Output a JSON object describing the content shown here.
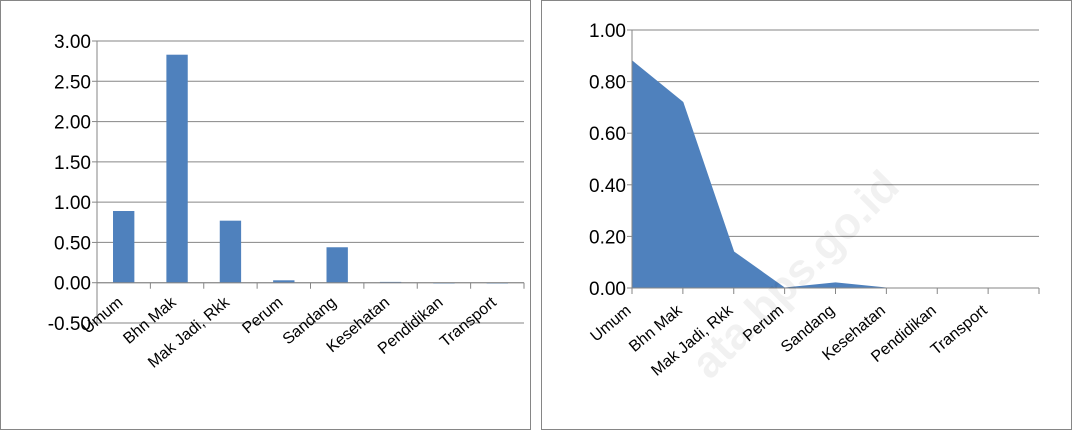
{
  "chart_data": [
    {
      "type": "bar",
      "categories": [
        "Umum",
        "Bhn Mak",
        "Mak Jadi, Rkk",
        "Perum",
        "Sandang",
        "Kesehatan",
        "Pendidikan",
        "Transport"
      ],
      "values": [
        0.89,
        2.83,
        0.77,
        0.03,
        0.44,
        0.01,
        0.0,
        0.0
      ],
      "ylim": [
        -0.5,
        3.0
      ],
      "yticks": [
        "-0.50",
        "0.00",
        "0.50",
        "1.00",
        "1.50",
        "2.00",
        "2.50",
        "3.00"
      ],
      "grid": true,
      "color": "#4f81bd"
    },
    {
      "type": "area",
      "categories": [
        "Umum",
        "Bhn Mak",
        "Mak Jadi, Rkk",
        "Perum",
        "Sandang",
        "Kesehatan",
        "Pendidikan",
        "Transport"
      ],
      "values": [
        0.88,
        0.72,
        0.14,
        0.0,
        0.02,
        0.0,
        0.0,
        0.0
      ],
      "ylim": [
        0.0,
        1.0
      ],
      "yticks": [
        "0.00",
        "0.20",
        "0.40",
        "0.60",
        "0.80",
        "1.00"
      ],
      "grid": true,
      "color": "#4f81bd"
    }
  ],
  "watermark": "ata.bps.go.id"
}
